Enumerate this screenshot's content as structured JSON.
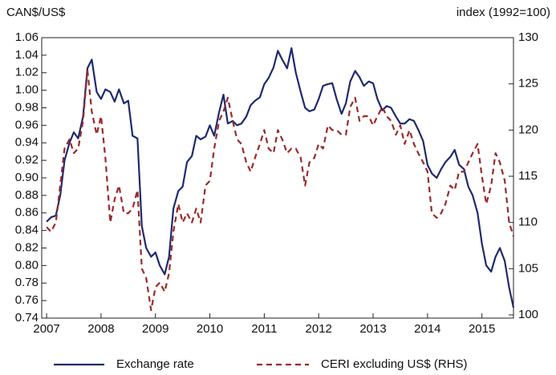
{
  "chart_data": {
    "type": "line",
    "ylabel": "CAN$/US$",
    "y2label": "index (1992=100)",
    "x": [
      2007,
      2007.08,
      2007.17,
      2007.25,
      2007.33,
      2007.42,
      2007.5,
      2007.58,
      2007.67,
      2007.75,
      2007.83,
      2007.92,
      2008,
      2008.08,
      2008.17,
      2008.25,
      2008.33,
      2008.42,
      2008.5,
      2008.58,
      2008.67,
      2008.75,
      2008.83,
      2008.92,
      2009,
      2009.08,
      2009.17,
      2009.25,
      2009.33,
      2009.42,
      2009.5,
      2009.58,
      2009.67,
      2009.75,
      2009.83,
      2009.92,
      2010,
      2010.08,
      2010.17,
      2010.25,
      2010.33,
      2010.42,
      2010.5,
      2010.58,
      2010.67,
      2010.75,
      2010.83,
      2010.92,
      2011,
      2011.08,
      2011.17,
      2011.25,
      2011.33,
      2011.42,
      2011.5,
      2011.58,
      2011.67,
      2011.75,
      2011.83,
      2011.92,
      2012,
      2012.08,
      2012.17,
      2012.25,
      2012.33,
      2012.42,
      2012.5,
      2012.58,
      2012.67,
      2012.75,
      2012.83,
      2012.92,
      2013,
      2013.08,
      2013.17,
      2013.25,
      2013.33,
      2013.42,
      2013.5,
      2013.58,
      2013.67,
      2013.75,
      2013.83,
      2013.92,
      2014,
      2014.08,
      2014.17,
      2014.25,
      2014.33,
      2014.42,
      2014.5,
      2014.58,
      2014.67,
      2014.75,
      2014.83,
      2014.92,
      2015,
      2015.08,
      2015.17,
      2015.25,
      2015.33,
      2015.42,
      2015.5,
      2015.58
    ],
    "series": [
      {
        "name": "Exchange rate",
        "color": "#1f2a6e",
        "dash": false,
        "values": [
          0.85,
          0.855,
          0.857,
          0.88,
          0.92,
          0.94,
          0.952,
          0.945,
          0.97,
          1.025,
          1.035,
          0.998,
          0.99,
          1.001,
          0.998,
          0.987,
          1.001,
          0.985,
          0.988,
          0.948,
          0.945,
          0.845,
          0.82,
          0.81,
          0.815,
          0.8,
          0.79,
          0.81,
          0.865,
          0.885,
          0.89,
          0.918,
          0.925,
          0.948,
          0.944,
          0.947,
          0.96,
          0.948,
          0.975,
          0.995,
          0.962,
          0.965,
          0.96,
          0.962,
          0.97,
          0.983,
          0.988,
          0.992,
          1.007,
          1.014,
          1.026,
          1.045,
          1.035,
          1.025,
          1.048,
          1.02,
          0.998,
          0.98,
          0.976,
          0.978,
          0.99,
          1.005,
          1.007,
          1.008,
          0.99,
          0.973,
          0.985,
          1.01,
          1.022,
          1.015,
          1.005,
          1.01,
          1.008,
          0.99,
          0.977,
          0.982,
          0.98,
          0.97,
          0.962,
          0.962,
          0.967,
          0.965,
          0.955,
          0.942,
          0.915,
          0.905,
          0.9,
          0.91,
          0.918,
          0.924,
          0.932,
          0.915,
          0.91,
          0.89,
          0.88,
          0.86,
          0.825,
          0.8,
          0.793,
          0.81,
          0.82,
          0.805,
          0.775,
          0.752
        ]
      },
      {
        "name": "CERI excluding US$ (RHS)",
        "color": "#9b2a2a",
        "dash": true,
        "axis": "y2",
        "values": [
          109.5,
          109,
          110,
          114,
          118,
          119,
          117.5,
          118,
          121,
          126.5,
          122,
          119.5,
          121.5,
          117,
          110,
          112.5,
          114,
          111,
          111,
          111.5,
          113.5,
          105,
          104,
          100.5,
          103,
          103.5,
          102.5,
          104.5,
          109,
          112,
          110,
          111,
          110,
          111.5,
          110,
          114,
          114.5,
          118,
          121,
          122,
          123.5,
          121,
          119,
          118.5,
          116.5,
          115.5,
          117,
          118.5,
          120,
          118,
          117.5,
          120,
          119,
          117.5,
          118,
          118,
          117,
          114,
          116.5,
          117,
          118.5,
          118,
          120.5,
          120,
          120,
          119.5,
          119.5,
          122.5,
          123.5,
          121,
          121.5,
          121.5,
          120.5,
          121.5,
          122.5,
          121.5,
          121,
          119.5,
          120.5,
          118.5,
          120,
          118.5,
          117.5,
          116.5,
          115.5,
          111,
          110.5,
          111,
          112,
          114,
          113.5,
          115.5,
          115.5,
          116.5,
          117.5,
          118.5,
          115,
          112,
          114,
          117.5,
          116.5,
          114.5,
          110,
          108.5
        ]
      }
    ],
    "xlim": [
      2006.91,
      2015.58
    ],
    "xticks": [
      2007,
      2008,
      2009,
      2010,
      2011,
      2012,
      2013,
      2014,
      2015
    ],
    "ylim": [
      0.74,
      1.06
    ],
    "yticks": [
      0.74,
      0.76,
      0.78,
      {
        "value": 0.8,
        "label": "0.80"
      },
      0.82,
      0.84,
      0.86,
      0.88,
      {
        "value": 0.9,
        "label": "0.90"
      },
      0.92,
      0.94,
      0.96,
      0.98,
      {
        "value": 1,
        "label": "1.00"
      },
      1.02,
      1.04,
      1.06
    ],
    "y2lim": [
      99.65,
      130
    ],
    "y2ticks": [
      100,
      105,
      110,
      115,
      120,
      125,
      130
    ],
    "legend": "bottom"
  }
}
